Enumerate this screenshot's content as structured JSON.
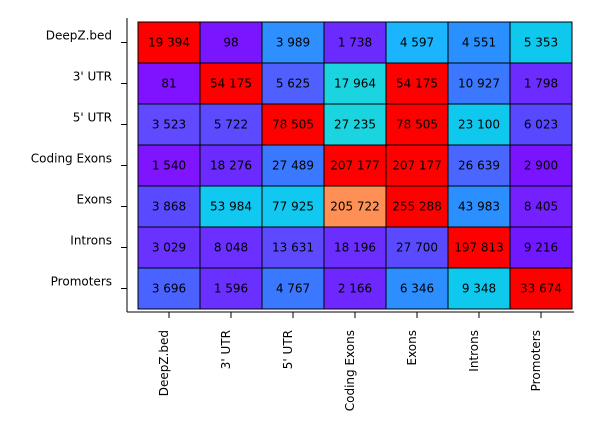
{
  "chart_data": {
    "type": "heatmap",
    "title": "",
    "xlabel": "",
    "ylabel": "",
    "x_categories": [
      "DeepZ.bed",
      "3' UTR",
      "5' UTR",
      "Coding Exons",
      "Exons",
      "Introns",
      "Promoters"
    ],
    "y_categories": [
      "DeepZ.bed",
      "3' UTR",
      "5' UTR",
      "Coding Exons",
      "Exons",
      "Introns",
      "Promoters"
    ],
    "values": [
      [
        19394,
        98,
        3989,
        1738,
        4597,
        4551,
        5353
      ],
      [
        81,
        54175,
        5625,
        17964,
        54175,
        10927,
        1798
      ],
      [
        3523,
        5722,
        78505,
        27235,
        78505,
        23100,
        6023
      ],
      [
        1540,
        18276,
        27489,
        207177,
        207177,
        26639,
        2900
      ],
      [
        3868,
        53984,
        77925,
        205722,
        255288,
        43983,
        8405
      ],
      [
        3029,
        8048,
        13631,
        18196,
        27700,
        197813,
        9216
      ],
      [
        3696,
        1596,
        4767,
        2166,
        6346,
        9348,
        33674
      ]
    ],
    "labels": [
      [
        "19 394",
        "98",
        "3 989",
        "1 738",
        "4 597",
        "4 551",
        "5 353"
      ],
      [
        "81",
        "54 175",
        "5 625",
        "17 964",
        "54 175",
        "10 927",
        "1 798"
      ],
      [
        "3 523",
        "5 722",
        "78 505",
        "27 235",
        "78 505",
        "23 100",
        "6 023"
      ],
      [
        "1 540",
        "18 276",
        "27 489",
        "207 177",
        "207 177",
        "26 639",
        "2 900"
      ],
      [
        "3 868",
        "53 984",
        "77 925",
        "205 722",
        "255 288",
        "43 983",
        "8 405"
      ],
      [
        "3 029",
        "8 048",
        "13 631",
        "18 196",
        "27 700",
        "197 813",
        "9 216"
      ],
      [
        "3 696",
        "1 596",
        "4 767",
        "2 166",
        "6 346",
        "9 348",
        "33 674"
      ]
    ],
    "colors": [
      [
        "#ff0000",
        "#7a16ff",
        "#2e8fff",
        "#6b2bff",
        "#1ab4ff",
        "#2a8fff",
        "#0ec8ee"
      ],
      [
        "#7f12ff",
        "#ff0000",
        "#4f60ff",
        "#1ad4e0",
        "#ff0000",
        "#3c78ff",
        "#6c2bff"
      ],
      [
        "#5f4aff",
        "#5c4aff",
        "#ff0000",
        "#1ad4e0",
        "#ff0000",
        "#0ec8ee",
        "#5848ff"
      ],
      [
        "#7f14ff",
        "#6b2bff",
        "#3a78ff",
        "#ff0000",
        "#ff0000",
        "#4a66ff",
        "#7a14ff"
      ],
      [
        "#5a4aff",
        "#10c8f0",
        "#10c8f0",
        "#ff9055",
        "#ff0000",
        "#2c8fff",
        "#7420ff"
      ],
      [
        "#6a32ff",
        "#6b30ff",
        "#5d4aff",
        "#6a2fff",
        "#5a4aff",
        "#ff0000",
        "#7018ff"
      ],
      [
        "#4a62ff",
        "#6a30ff",
        "#3a78ff",
        "#6e28ff",
        "#2d8fff",
        "#0ec8ee",
        "#ff0000"
      ]
    ],
    "grid": false,
    "legend": "none"
  }
}
